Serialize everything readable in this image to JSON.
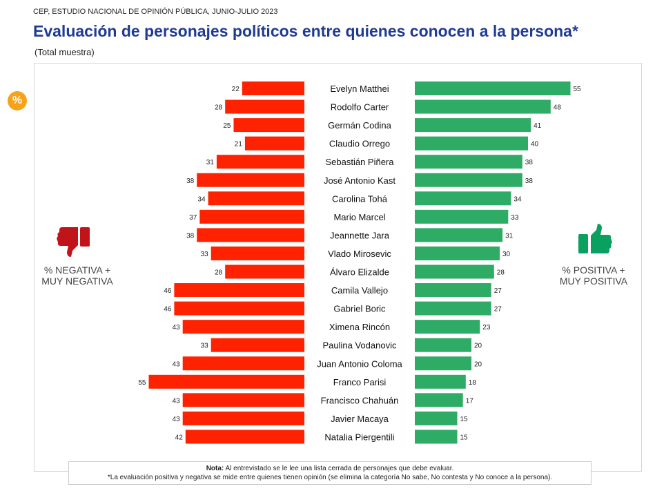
{
  "header": {
    "source": "CEP, ESTUDIO NACIONAL DE OPINIÓN PÚBLICA, JUNIO-JULIO 2023",
    "title": "Evaluación de personajes políticos entre quienes conocen a la persona*",
    "subtitle": "(Total muestra)"
  },
  "badge": "%",
  "legend": {
    "negative_label": "% NEGATIVA + MUY NEGATIVA",
    "positive_label": "% POSITIVA + MUY POSITIVA"
  },
  "note": {
    "label": "Nota:",
    "line1": "Al entrevistado se le lee una lista cerrada de personajes que debe evaluar.",
    "line2": "*La evaluación positiva y negativa se mide entre quienes tienen opinión (se elimina la categoría No sabe, No contesta y No conoce a la persona)."
  },
  "colors": {
    "negative": "#ff2200",
    "positive": "#2eab65",
    "title": "#1f3a93",
    "badge": "#f5a31a"
  },
  "chart_data": {
    "type": "bar",
    "orientation": "diverging-horizontal",
    "title": "Evaluación de personajes políticos entre quienes conocen a la persona*",
    "categories": [
      "Evelyn Matthei",
      "Rodolfo Carter",
      "Germán Codina",
      "Claudio Orrego",
      "Sebastián Piñera",
      "José Antonio Kast",
      "Carolina Tohá",
      "Mario Marcel",
      "Jeannette Jara",
      "Vlado Mirosevic",
      "Álvaro Elizalde",
      "Camila Vallejo",
      "Gabriel Boric",
      "Ximena Rincón",
      "Paulina Vodanovic",
      "Juan Antonio Coloma",
      "Franco Parisi",
      "Francisco Chahuán",
      "Javier Macaya",
      "Natalia Piergentili"
    ],
    "series": [
      {
        "name": "% NEGATIVA + MUY NEGATIVA",
        "values": [
          22,
          28,
          25,
          21,
          31,
          38,
          34,
          37,
          38,
          33,
          28,
          46,
          46,
          43,
          33,
          43,
          55,
          43,
          43,
          42
        ]
      },
      {
        "name": "% POSITIVA + MUY POSITIVA",
        "values": [
          55,
          48,
          41,
          40,
          38,
          38,
          34,
          33,
          31,
          30,
          28,
          27,
          27,
          23,
          20,
          20,
          18,
          17,
          15,
          15
        ]
      }
    ],
    "xlim": [
      0,
      55
    ]
  }
}
